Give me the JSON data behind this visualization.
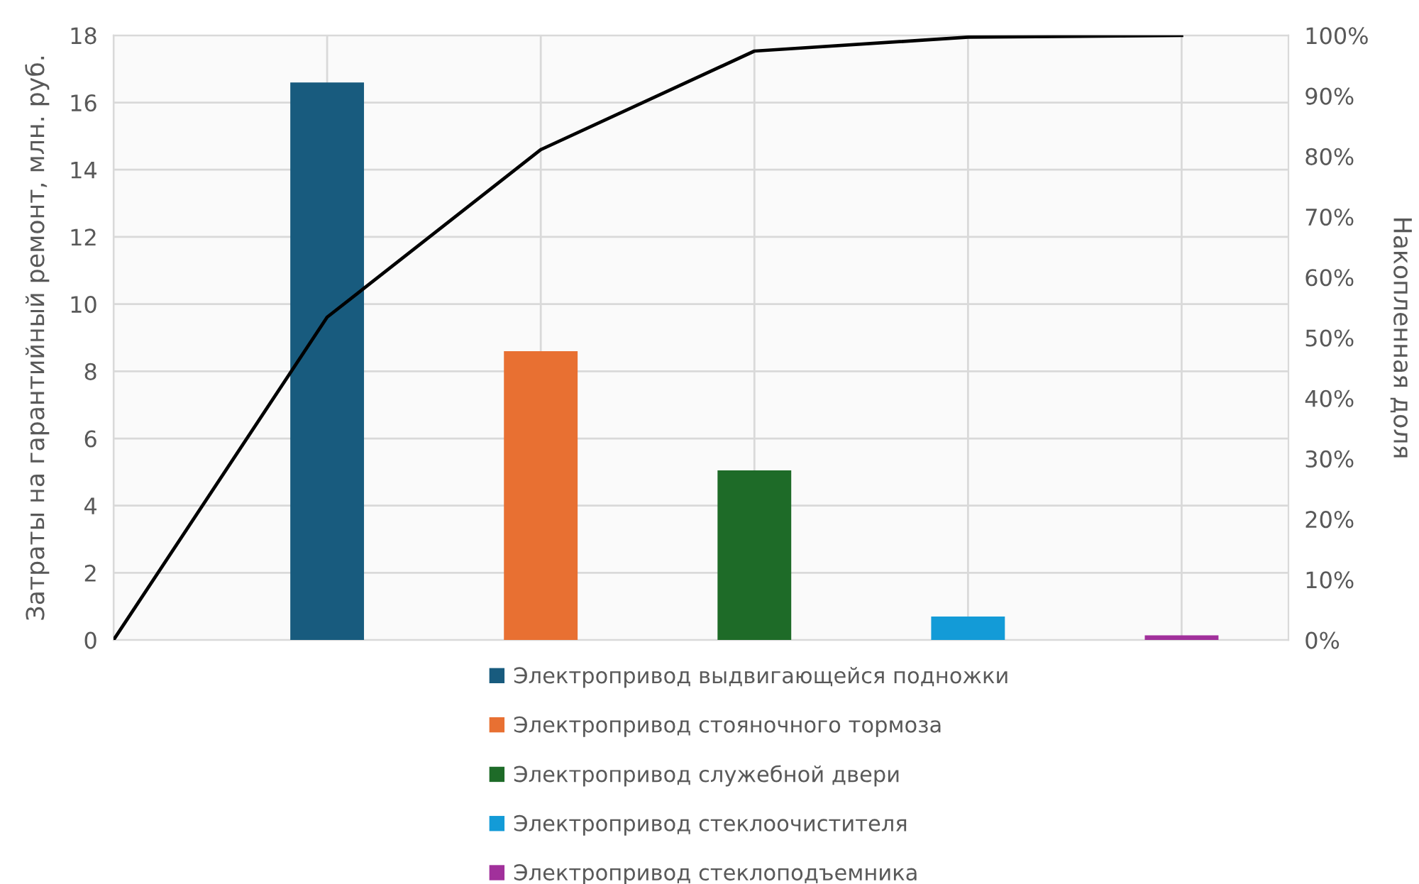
{
  "chart_data": {
    "type": "bar",
    "ylabel": "Затраты на гарантийный ремонт, млн. руб.",
    "y2label": "Накопленная доля",
    "categories": [
      null,
      null,
      null,
      null,
      null,
      null
    ],
    "series": [
      {
        "name": "Электропривод выдвигающейся подножки",
        "color": "#185b7e",
        "values": [
          null,
          16.6,
          null,
          null,
          null,
          null
        ]
      },
      {
        "name": "Электропривод стояночного тормоза",
        "color": "#e87032",
        "values": [
          null,
          null,
          8.6,
          null,
          null,
          null
        ]
      },
      {
        "name": "Электропривод служебной двери",
        "color": "#1e6b28",
        "values": [
          null,
          null,
          null,
          5.05,
          null,
          null
        ]
      },
      {
        "name": "Электропривод стеклоочистителя",
        "color": "#139bd7",
        "values": [
          null,
          null,
          null,
          null,
          0.7,
          null
        ]
      },
      {
        "name": "Электропривод стеклоподъемника",
        "color": "#a1309b",
        "values": [
          null,
          null,
          null,
          null,
          null,
          0.14
        ]
      },
      {
        "type": "line",
        "axis": "y2",
        "color": "#000000",
        "values": [
          0,
          53.4,
          81.1,
          97.4,
          99.7,
          100
        ]
      }
    ],
    "ylim": [
      0,
      18
    ],
    "yticks": [
      0,
      2,
      4,
      6,
      8,
      10,
      12,
      14,
      16,
      18
    ],
    "y2lim": [
      0,
      100
    ],
    "y2ticks": [
      {
        "value": 0,
        "label": "0%"
      },
      {
        "value": 10,
        "label": "10%"
      },
      {
        "value": 20,
        "label": "20%"
      },
      {
        "value": 30,
        "label": "30%"
      },
      {
        "value": 40,
        "label": "40%"
      },
      {
        "value": 50,
        "label": "50%"
      },
      {
        "value": 60,
        "label": "60%"
      },
      {
        "value": 70,
        "label": "70%"
      },
      {
        "value": 80,
        "label": "80%"
      },
      {
        "value": 90,
        "label": "90%"
      },
      {
        "value": 100,
        "label": "100%"
      }
    ],
    "grid": true,
    "legend": "bottom",
    "tick_labels": "y"
  }
}
